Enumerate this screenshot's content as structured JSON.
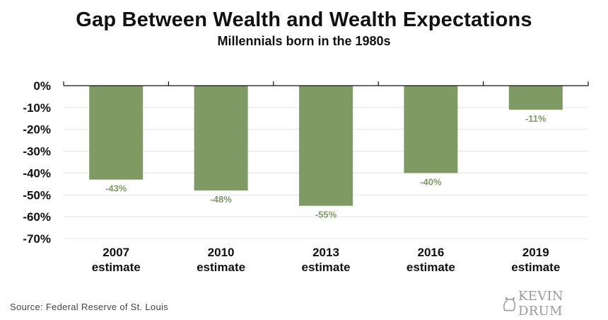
{
  "title": "Gap Between Wealth and Wealth Expectations",
  "subtitle": "Millennials born in the 1980s",
  "source": "Source: Federal Reserve of St. Louis",
  "brand": {
    "text": "KEVIN DRUM",
    "icon": "cat-logo-icon"
  },
  "colors": {
    "bar": "#7f9b63",
    "label": "#7f9b63",
    "grid": "#e3e3e3",
    "axis": "#111111"
  },
  "chart_data": {
    "type": "bar",
    "title": "Gap Between Wealth and Wealth Expectations",
    "subtitle": "Millennials born in the 1980s",
    "categories": [
      [
        "2007",
        "estimate"
      ],
      [
        "2010",
        "estimate"
      ],
      [
        "2013",
        "estimate"
      ],
      [
        "2016",
        "estimate"
      ],
      [
        "2019",
        "estimate"
      ]
    ],
    "values": [
      -43,
      -48,
      -55,
      -40,
      -11
    ],
    "value_labels": [
      "-43%",
      "-48%",
      "-55%",
      "-40%",
      "-11%"
    ],
    "y_ticks": [
      0,
      -10,
      -20,
      -30,
      -40,
      -50,
      -60,
      -70
    ],
    "y_tick_labels": [
      "0%",
      "-10%",
      "-20%",
      "-30%",
      "-40%",
      "-50%",
      "-60%",
      "-70%"
    ],
    "ylim": [
      -70,
      0
    ],
    "grid": true,
    "legend": false
  }
}
